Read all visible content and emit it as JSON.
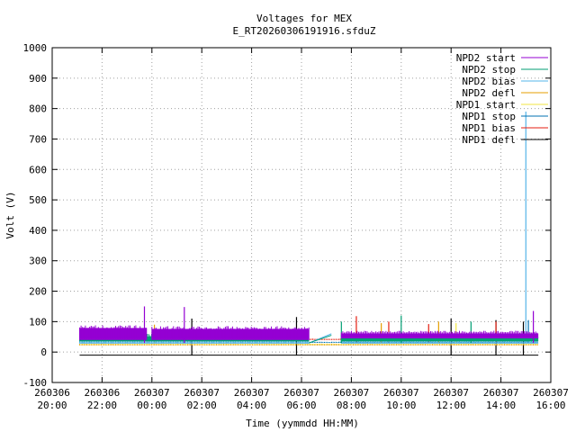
{
  "chart_data": {
    "type": "line",
    "title": "Voltages for MEX",
    "subtitle": "E_RT20260306191916.sfduZ",
    "xlabel": "Time (yymmdd HH:MM)",
    "ylabel": "Volt (V)",
    "ylim": [
      -100,
      1000
    ],
    "xlim": [
      20,
      40
    ],
    "yticks": [
      -100,
      0,
      100,
      200,
      300,
      400,
      500,
      600,
      700,
      800,
      900,
      1000
    ],
    "xticks": [
      {
        "hour": 20,
        "date": "260306",
        "time": "20:00"
      },
      {
        "hour": 22,
        "date": "260306",
        "time": "22:00"
      },
      {
        "hour": 24,
        "date": "260307",
        "time": "00:00"
      },
      {
        "hour": 26,
        "date": "260307",
        "time": "02:00"
      },
      {
        "hour": 28,
        "date": "260307",
        "time": "04:00"
      },
      {
        "hour": 30,
        "date": "260307",
        "time": "06:00"
      },
      {
        "hour": 32,
        "date": "260307",
        "time": "08:00"
      },
      {
        "hour": 34,
        "date": "260307",
        "time": "10:00"
      },
      {
        "hour": 36,
        "date": "260307",
        "time": "12:00"
      },
      {
        "hour": 38,
        "date": "260307",
        "time": "14:00"
      },
      {
        "hour": 40,
        "date": "260307",
        "time": "16:00"
      }
    ],
    "grid": true,
    "legend_position": "top-right",
    "series": [
      {
        "name": "NPD2 start",
        "color": "#9400d3",
        "segments": [
          {
            "x_start": 21.1,
            "x_end": 23.8,
            "low": 40,
            "high": 88
          },
          {
            "x_start": 24.0,
            "x_end": 30.3,
            "low": 40,
            "high": 85
          },
          {
            "x_start": 31.6,
            "x_end": 37.2,
            "low": 45,
            "high": 70
          },
          {
            "x_start": 37.2,
            "x_end": 39.5,
            "low": 45,
            "high": 70
          }
        ],
        "spikes": [
          {
            "x": 23.7,
            "y": 150
          },
          {
            "x": 25.3,
            "y": 148
          },
          {
            "x": 39.3,
            "y": 135
          }
        ]
      },
      {
        "name": "NPD2 stop",
        "color": "#009e73",
        "segments": [
          {
            "x_start": 21.1,
            "x_end": 30.3,
            "low": 35,
            "high": 60
          },
          {
            "x_start": 31.6,
            "x_end": 39.5,
            "low": 35,
            "high": 58
          }
        ],
        "transition": [
          {
            "x": 30.3,
            "y": 30
          },
          {
            "x": 31.2,
            "y": 55
          }
        ],
        "spikes": [
          {
            "x": 31.6,
            "y": 100
          },
          {
            "x": 34.0,
            "y": 120
          },
          {
            "x": 36.8,
            "y": 100
          }
        ]
      },
      {
        "name": "NPD2 bias",
        "color": "#56b4e9",
        "segments": [
          {
            "x_start": 21.1,
            "x_end": 30.3,
            "low": 28,
            "high": 40
          },
          {
            "x_start": 31.6,
            "x_end": 39.5,
            "low": 28,
            "high": 40
          }
        ],
        "transition": [
          {
            "x": 30.3,
            "y": 30
          },
          {
            "x": 31.2,
            "y": 60
          }
        ],
        "spikes": [
          {
            "x": 39.0,
            "y": 790
          }
        ]
      },
      {
        "name": "NPD2 defl",
        "color": "#e69f00",
        "segments": [
          {
            "x_start": 21.1,
            "x_end": 39.5,
            "low": 22,
            "high": 26
          }
        ],
        "spikes": [
          {
            "x": 24.1,
            "y": 90
          },
          {
            "x": 33.2,
            "y": 95
          },
          {
            "x": 35.5,
            "y": 100
          }
        ]
      },
      {
        "name": "NPD1 start",
        "color": "#f0e442",
        "segments": [
          {
            "x_start": 21.1,
            "x_end": 39.5,
            "low": 24,
            "high": 28
          }
        ],
        "spikes": [
          {
            "x": 36.2,
            "y": 95
          }
        ]
      },
      {
        "name": "NPD1 stop",
        "color": "#0072b2",
        "segments": [
          {
            "x_start": 21.1,
            "x_end": 39.5,
            "low": 30,
            "high": 34
          }
        ],
        "spikes": [
          {
            "x": 39.1,
            "y": 105
          }
        ]
      },
      {
        "name": "NPD1 bias",
        "color": "#e51e10",
        "segments": [
          {
            "x_start": 21.1,
            "x_end": 39.5,
            "low": 40,
            "high": 44
          }
        ],
        "spikes": [
          {
            "x": 32.2,
            "y": 118
          },
          {
            "x": 33.5,
            "y": 100
          },
          {
            "x": 35.1,
            "y": 92
          },
          {
            "x": 37.8,
            "y": 100
          }
        ]
      },
      {
        "name": "NPD1 defl",
        "color": "#000000",
        "segments": [
          {
            "x_start": 21.1,
            "x_end": 39.5,
            "low": -10,
            "high": -10
          }
        ],
        "spikes": [
          {
            "x": 25.6,
            "y": 110,
            "low": -10
          },
          {
            "x": 29.8,
            "y": 115,
            "low": -10
          },
          {
            "x": 36.0,
            "y": 110,
            "low": -10
          },
          {
            "x": 37.8,
            "y": 105,
            "low": -10
          },
          {
            "x": 38.9,
            "y": 100,
            "low": -10
          }
        ]
      }
    ]
  }
}
